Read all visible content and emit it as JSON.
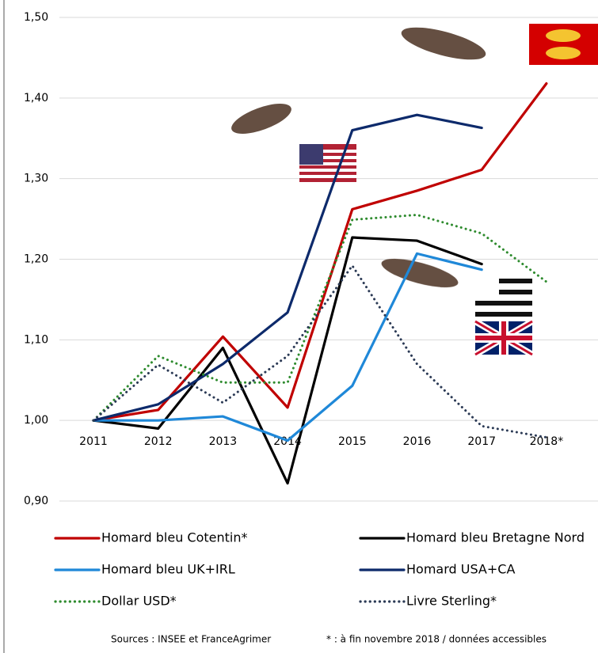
{
  "chart_data": {
    "type": "line",
    "categories": [
      "2011",
      "2012",
      "2013",
      "2014",
      "2015",
      "2016",
      "2017",
      "2018*"
    ],
    "series": [
      {
        "name": "Homard bleu Cotentin*",
        "color": "#c00000",
        "dash": "solid",
        "values": [
          1.0,
          1.013,
          1.104,
          1.016,
          1.262,
          1.285,
          1.311,
          1.418
        ]
      },
      {
        "name": "Homard bleu Bretagne Nord",
        "color": "#000000",
        "dash": "solid",
        "values": [
          1.0,
          0.99,
          1.09,
          0.922,
          1.227,
          1.223,
          1.194,
          null
        ]
      },
      {
        "name": "Homard bleu UK+IRL",
        "color": "#1f88d8",
        "dash": "solid",
        "values": [
          1.0,
          1.0,
          1.005,
          0.975,
          1.043,
          1.207,
          1.187,
          null
        ]
      },
      {
        "name": "Homard USA+CA",
        "color": "#0d2a6b",
        "dash": "solid",
        "values": [
          1.0,
          1.02,
          1.07,
          1.134,
          1.36,
          1.379,
          1.363,
          null
        ]
      },
      {
        "name": "Dollar USD*",
        "color": "#2e8b2e",
        "dash": "dotted",
        "values": [
          1.0,
          1.08,
          1.047,
          1.047,
          1.249,
          1.255,
          1.232,
          1.172
        ]
      },
      {
        "name": "Livre Sterling*",
        "color": "#2b3a55",
        "dash": "dotted",
        "values": [
          1.0,
          1.069,
          1.022,
          1.08,
          1.192,
          1.07,
          0.993,
          0.979
        ]
      }
    ],
    "ylim": [
      0.9,
      1.5
    ],
    "yticks": [
      {
        "value": 0.9,
        "label": "0,90"
      },
      {
        "value": 1.0,
        "label": "1,00"
      },
      {
        "value": 1.1,
        "label": "1,10"
      },
      {
        "value": 1.2,
        "label": "1,20"
      },
      {
        "value": 1.3,
        "label": "1,30"
      },
      {
        "value": 1.4,
        "label": "1,40"
      },
      {
        "value": 1.5,
        "label": "1,50"
      }
    ],
    "grid": true,
    "source": "Sources : INSEE et FranceAgrimer",
    "note": "* : à fin novembre 2018  / données accessibles"
  }
}
